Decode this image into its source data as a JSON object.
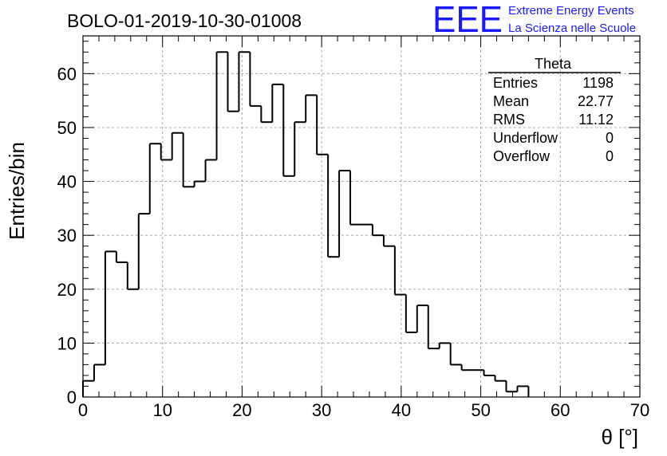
{
  "chart_data": {
    "type": "bar",
    "style": "step-histogram",
    "title": "BOLO-01-2019-10-30-01008",
    "xlabel": "θ [°]",
    "ylabel": "Entries/bin",
    "xlim": [
      0,
      70
    ],
    "ylim": [
      0,
      67
    ],
    "grid": true,
    "bin_width": 1.4,
    "bin_edges_start": 0,
    "values": [
      3,
      6,
      27,
      25,
      20,
      34,
      47,
      44,
      49,
      39,
      40,
      44,
      64,
      53,
      64,
      54,
      51,
      58,
      41,
      51,
      56,
      45,
      26,
      42,
      32,
      32,
      30,
      28,
      19,
      12,
      17,
      9,
      10,
      6,
      5,
      5,
      4,
      3,
      1,
      2
    ],
    "x_ticks": [
      0,
      10,
      20,
      30,
      40,
      50,
      60,
      70
    ],
    "x_tick_labels": [
      "0",
      "10",
      "20",
      "30",
      "40",
      "50",
      "60",
      "70"
    ],
    "y_ticks": [
      0,
      10,
      20,
      30,
      40,
      50,
      60
    ],
    "y_tick_labels": [
      "0",
      "10",
      "20",
      "30",
      "40",
      "50",
      "60"
    ],
    "stats_box": {
      "title": "Theta",
      "placement": "top-right",
      "rows": [
        {
          "label": "Entries",
          "value": "1198"
        },
        {
          "label": "Mean",
          "value": "22.77"
        },
        {
          "label": "RMS",
          "value": "11.12"
        },
        {
          "label": "Underflow",
          "value": "0"
        },
        {
          "label": "Overflow",
          "value": "0"
        }
      ]
    },
    "line_color": "#000000"
  },
  "logo": {
    "mark": "EEE",
    "line1": "Extreme Energy Events",
    "line2": "La Scienza nelle Scuole",
    "color": "#1a1aff"
  }
}
